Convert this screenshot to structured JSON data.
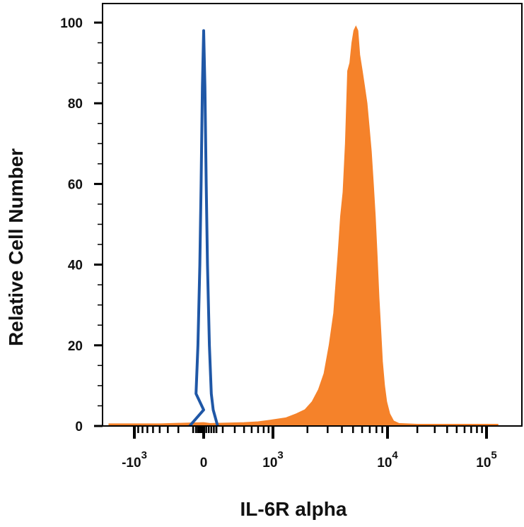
{
  "chart_data": {
    "type": "area",
    "xlabel": "IL-6R alpha",
    "ylabel": "Relative Cell Number",
    "x_scale": "biexponential",
    "ylim": [
      0,
      100
    ],
    "y_ticks": [
      {
        "value": 0,
        "label": "0"
      },
      {
        "value": 20,
        "label": "20"
      },
      {
        "value": 40,
        "label": "40"
      },
      {
        "value": 60,
        "label": "60"
      },
      {
        "value": 80,
        "label": "80"
      },
      {
        "value": 100,
        "label": "100"
      }
    ],
    "x_ticks": [
      {
        "value": -1000,
        "base": "-10",
        "exp": "3"
      },
      {
        "value": 0,
        "base": "0",
        "exp": ""
      },
      {
        "value": 1000,
        "base": "10",
        "exp": "3"
      },
      {
        "value": 10000,
        "base": "10",
        "exp": "4"
      },
      {
        "value": 100000,
        "base": "10",
        "exp": "5"
      }
    ],
    "series": [
      {
        "style": "filled",
        "color": "#F5822A",
        "points": [
          [
            -2000,
            0.5
          ],
          [
            -500,
            0.5
          ],
          [
            0,
            0.8
          ],
          [
            100,
            0.6
          ],
          [
            500,
            0.8
          ],
          [
            700,
            1
          ],
          [
            1000,
            1.5
          ],
          [
            1300,
            2
          ],
          [
            1600,
            3
          ],
          [
            1900,
            4
          ],
          [
            2200,
            6
          ],
          [
            2500,
            9
          ],
          [
            2800,
            13
          ],
          [
            3100,
            20
          ],
          [
            3400,
            28
          ],
          [
            3700,
            42
          ],
          [
            3900,
            52
          ],
          [
            4100,
            58
          ],
          [
            4300,
            70
          ],
          [
            4500,
            88
          ],
          [
            4700,
            90
          ],
          [
            4900,
            95
          ],
          [
            5100,
            98
          ],
          [
            5300,
            99
          ],
          [
            5500,
            98
          ],
          [
            5700,
            92
          ],
          [
            6000,
            88
          ],
          [
            6300,
            84
          ],
          [
            6600,
            80
          ],
          [
            6900,
            74
          ],
          [
            7200,
            68
          ],
          [
            7500,
            60
          ],
          [
            7800,
            52
          ],
          [
            8100,
            42
          ],
          [
            8400,
            32
          ],
          [
            8700,
            24
          ],
          [
            9000,
            16
          ],
          [
            9400,
            10
          ],
          [
            9800,
            6
          ],
          [
            10500,
            3
          ],
          [
            11500,
            1.2
          ],
          [
            13000,
            0.6
          ],
          [
            20000,
            0.4
          ],
          [
            130000,
            0.4
          ]
        ]
      },
      {
        "style": "line",
        "color": "#1F57A6",
        "points": [
          [
            -220,
            0
          ],
          [
            -150,
            4
          ],
          [
            -120,
            8
          ],
          [
            -90,
            20
          ],
          [
            -60,
            40
          ],
          [
            -40,
            60
          ],
          [
            -20,
            84
          ],
          [
            0,
            98
          ],
          [
            20,
            84
          ],
          [
            40,
            60
          ],
          [
            60,
            40
          ],
          [
            90,
            20
          ],
          [
            120,
            8
          ],
          [
            150,
            4
          ],
          [
            220,
            0
          ]
        ]
      }
    ]
  },
  "colors": {
    "frame": "#000000",
    "background": "#ffffff"
  }
}
